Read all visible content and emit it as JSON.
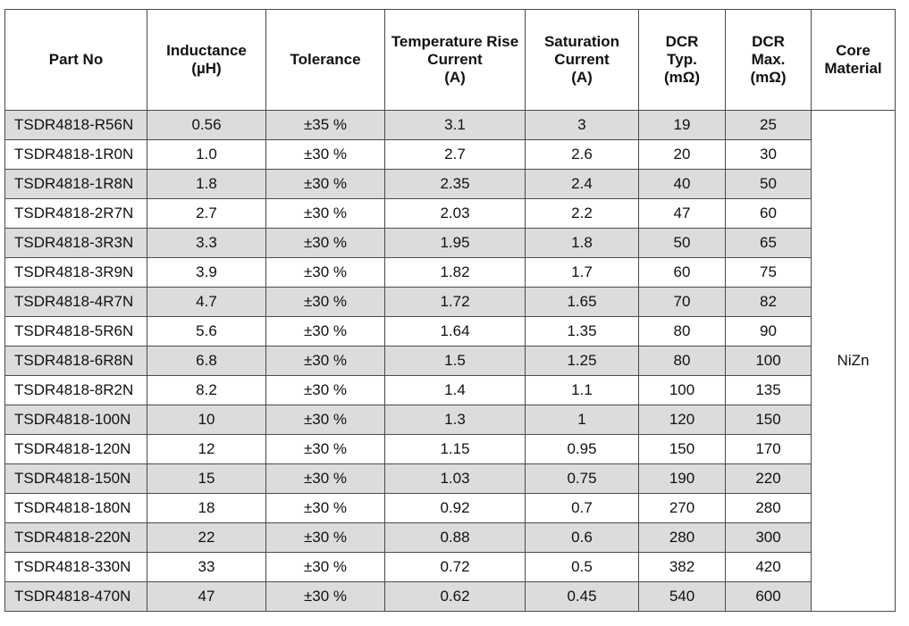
{
  "headers": {
    "part_no": "Part No",
    "inductance": [
      "Inductance",
      "(µH)"
    ],
    "tolerance": "Tolerance",
    "temp_rise": [
      "Temperature Rise",
      "Current",
      "(A)"
    ],
    "saturation": [
      "Saturation",
      "Current",
      "(A)"
    ],
    "dcr_typ": [
      "DCR",
      "Typ.",
      "(mΩ)"
    ],
    "dcr_max": [
      "DCR",
      "Max.",
      "(mΩ)"
    ],
    "core": [
      "Core",
      "Material"
    ]
  },
  "core_material": "NiZn",
  "rows": [
    {
      "part": "TSDR4818-R56N",
      "ind": "0.56",
      "tol": "±35 %",
      "temp": "3.1",
      "sat": "3",
      "typ": "19",
      "max": "25"
    },
    {
      "part": "TSDR4818-1R0N",
      "ind": "1.0",
      "tol": "±30 %",
      "temp": "2.7",
      "sat": "2.6",
      "typ": "20",
      "max": "30"
    },
    {
      "part": "TSDR4818-1R8N",
      "ind": "1.8",
      "tol": "±30 %",
      "temp": "2.35",
      "sat": "2.4",
      "typ": "40",
      "max": "50"
    },
    {
      "part": "TSDR4818-2R7N",
      "ind": "2.7",
      "tol": "±30 %",
      "temp": "2.03",
      "sat": "2.2",
      "typ": "47",
      "max": "60"
    },
    {
      "part": "TSDR4818-3R3N",
      "ind": "3.3",
      "tol": "±30 %",
      "temp": "1.95",
      "sat": "1.8",
      "typ": "50",
      "max": "65"
    },
    {
      "part": "TSDR4818-3R9N",
      "ind": "3.9",
      "tol": "±30 %",
      "temp": "1.82",
      "sat": "1.7",
      "typ": "60",
      "max": "75"
    },
    {
      "part": "TSDR4818-4R7N",
      "ind": "4.7",
      "tol": "±30 %",
      "temp": "1.72",
      "sat": "1.65",
      "typ": "70",
      "max": "82"
    },
    {
      "part": "TSDR4818-5R6N",
      "ind": "5.6",
      "tol": "±30 %",
      "temp": "1.64",
      "sat": "1.35",
      "typ": "80",
      "max": "90"
    },
    {
      "part": "TSDR4818-6R8N",
      "ind": "6.8",
      "tol": "±30 %",
      "temp": "1.5",
      "sat": "1.25",
      "typ": "80",
      "max": "100"
    },
    {
      "part": "TSDR4818-8R2N",
      "ind": "8.2",
      "tol": "±30 %",
      "temp": "1.4",
      "sat": "1.1",
      "typ": "100",
      "max": "135"
    },
    {
      "part": "TSDR4818-100N",
      "ind": "10",
      "tol": "±30 %",
      "temp": "1.3",
      "sat": "1",
      "typ": "120",
      "max": "150"
    },
    {
      "part": "TSDR4818-120N",
      "ind": "12",
      "tol": "±30 %",
      "temp": "1.15",
      "sat": "0.95",
      "typ": "150",
      "max": "170"
    },
    {
      "part": "TSDR4818-150N",
      "ind": "15",
      "tol": "±30 %",
      "temp": "1.03",
      "sat": "0.75",
      "typ": "190",
      "max": "220"
    },
    {
      "part": "TSDR4818-180N",
      "ind": "18",
      "tol": "±30 %",
      "temp": "0.92",
      "sat": "0.7",
      "typ": "270",
      "max": "280"
    },
    {
      "part": "TSDR4818-220N",
      "ind": "22",
      "tol": "±30 %",
      "temp": "0.88",
      "sat": "0.6",
      "typ": "280",
      "max": "300"
    },
    {
      "part": "TSDR4818-330N",
      "ind": "33",
      "tol": "±30 %",
      "temp": "0.72",
      "sat": "0.5",
      "typ": "382",
      "max": "420"
    },
    {
      "part": "TSDR4818-470N",
      "ind": "47",
      "tol": "±30 %",
      "temp": "0.62",
      "sat": "0.45",
      "typ": "540",
      "max": "600"
    }
  ],
  "colors": {
    "shaded_row": "#dcdcdc",
    "border": "#4a4a4a"
  }
}
